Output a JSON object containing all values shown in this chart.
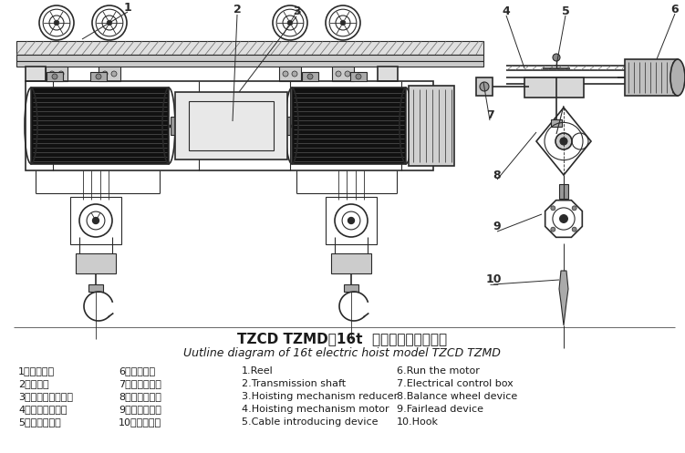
{
  "title_cn": "TZCD TZMD型16t  电动葫芦外形结构图",
  "title_en": "Uutline diagram of 16t electric hoist model TZCD TZMD",
  "bg_color": "#ffffff",
  "labels_cn_left": [
    "1、卷筒装置",
    "2、传动轴",
    "3、起升机构减速机",
    "4、起升机构电机",
    "5、软绳引入器"
  ],
  "labels_cn_right": [
    "6、运行电机",
    "7、电器控制筱",
    "8、平衡轮装置",
    "9、导绳器装置",
    "10、吸钉装置"
  ],
  "labels_en_left": [
    "1.Reel",
    "2.Transmission shaft",
    "3.Hoisting mechanism reducer",
    "4.Hoisting mechanism motor",
    "5.Cable introducing device"
  ],
  "labels_en_right": [
    "6.Run the motor",
    "7.Electrical control box",
    "8.Balance wheel device",
    "9.Fairlead device",
    "10.Hook"
  ],
  "text_color": "#1a1a1a",
  "line_color": "#2a2a2a",
  "title_fontsize": 11,
  "subtitle_fontsize": 9,
  "label_fontsize": 8,
  "figure_width": 7.51,
  "figure_height": 4.97,
  "dpi": 100
}
